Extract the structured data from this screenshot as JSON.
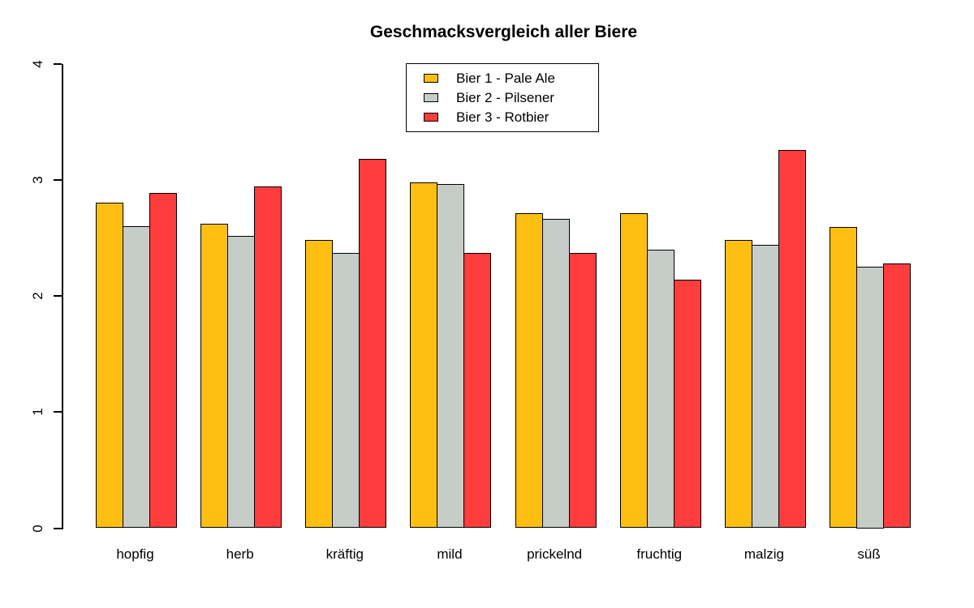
{
  "chart_data": {
    "type": "bar",
    "title": "Geschmacksvergleich aller Biere",
    "categories": [
      "hopfig",
      "herb",
      "kräftig",
      "mild",
      "prickelnd",
      "fruchtig",
      "malzig",
      "süß"
    ],
    "series": [
      {
        "name": "Bier 1 - Pale Ale",
        "color": "#FFBF12",
        "values": [
          2.8,
          2.62,
          2.48,
          2.98,
          2.71,
          2.71,
          2.48,
          2.59
        ]
      },
      {
        "name": "Bier 2 - Pilsener",
        "color": "#C6CDC9",
        "values": [
          2.6,
          2.52,
          2.37,
          2.96,
          2.66,
          2.4,
          2.44,
          2.25
        ]
      },
      {
        "name": "Bier 3 - Rotbier",
        "color": "#FF3D3D",
        "values": [
          2.89,
          2.94,
          3.18,
          2.37,
          2.37,
          2.14,
          3.26,
          2.28
        ]
      }
    ],
    "xlabel": "",
    "ylabel": "",
    "ylim": [
      0,
      4
    ],
    "yticks": [
      "0",
      "1",
      "2",
      "3",
      "4"
    ],
    "grid": false,
    "legend_position": "top-center",
    "bar_border_color": "#000000",
    "axis_color": "#000000",
    "background": "#FFFFFF"
  }
}
